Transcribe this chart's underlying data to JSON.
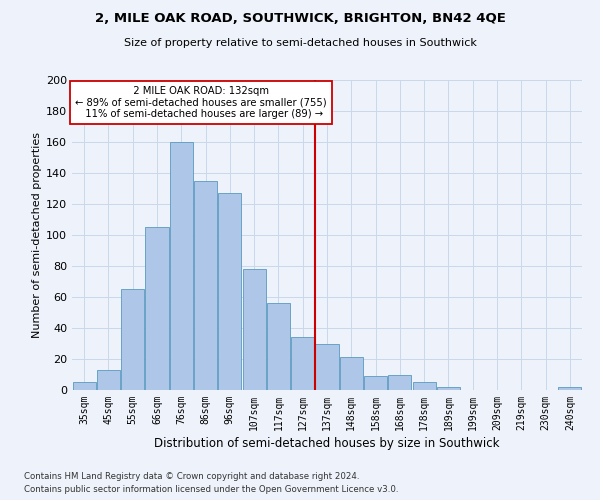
{
  "title": "2, MILE OAK ROAD, SOUTHWICK, BRIGHTON, BN42 4QE",
  "subtitle": "Size of property relative to semi-detached houses in Southwick",
  "xlabel": "Distribution of semi-detached houses by size in Southwick",
  "ylabel": "Number of semi-detached properties",
  "footnote1": "Contains HM Land Registry data © Crown copyright and database right 2024.",
  "footnote2": "Contains public sector information licensed under the Open Government Licence v3.0.",
  "bar_labels": [
    "35sqm",
    "45sqm",
    "55sqm",
    "66sqm",
    "76sqm",
    "86sqm",
    "96sqm",
    "107sqm",
    "117sqm",
    "127sqm",
    "137sqm",
    "148sqm",
    "158sqm",
    "168sqm",
    "178sqm",
    "189sqm",
    "199sqm",
    "209sqm",
    "219sqm",
    "230sqm",
    "240sqm"
  ],
  "bar_values": [
    5,
    13,
    65,
    105,
    160,
    135,
    127,
    78,
    56,
    34,
    30,
    21,
    9,
    10,
    5,
    2,
    0,
    0,
    0,
    0,
    2
  ],
  "bar_color": "#aec6e8",
  "bar_edge_color": "#5a9abf",
  "grid_color": "#c8d8ea",
  "background_color": "#eef2fa",
  "property_label": "2 MILE OAK ROAD: 132sqm",
  "pct_smaller": 89,
  "count_smaller": 755,
  "pct_larger": 11,
  "count_larger": 89,
  "vline_color": "#cc0000",
  "annotation_box_edge": "#cc0000",
  "vline_x_bin": 9.5,
  "ylim": [
    0,
    200
  ],
  "yticks": [
    0,
    20,
    40,
    60,
    80,
    100,
    120,
    140,
    160,
    180,
    200
  ]
}
